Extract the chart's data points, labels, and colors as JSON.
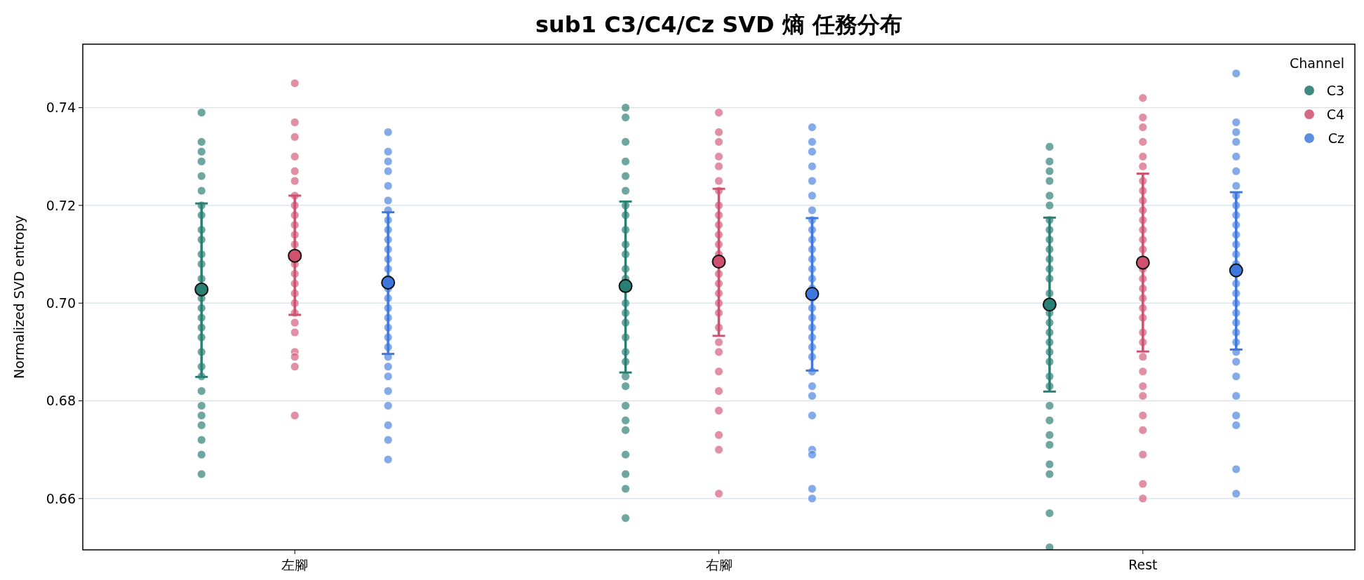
{
  "chart_data": {
    "type": "scatter",
    "title": "sub1 C3/C4/Cz SVD 熵 任務分布",
    "ylabel": "Normalized SVD entropy",
    "legend_title": "Channel",
    "legend": "top right",
    "grid": "y",
    "marker": "circle",
    "categories": [
      "左腳",
      "右腳",
      "Rest"
    ],
    "ylim": [
      0.6495,
      0.753
    ],
    "yticks": [
      {
        "value": 0.66,
        "label": "0.66"
      },
      {
        "value": 0.68,
        "label": "0.68"
      },
      {
        "value": 0.7,
        "label": "0.70"
      },
      {
        "value": 0.72,
        "label": "0.72"
      },
      {
        "value": 0.74,
        "label": "0.74"
      }
    ],
    "series": [
      {
        "name": "C3",
        "color": "#3f8a80",
        "x": [
          "左腳",
          "左腳",
          "左腳",
          "左腳",
          "左腳",
          "左腳",
          "左腳",
          "左腳",
          "左腳",
          "左腳",
          "左腳",
          "左腳",
          "左腳",
          "左腳",
          "左腳",
          "左腳",
          "左腳",
          "左腳",
          "左腳",
          "左腳",
          "左腳",
          "左腳",
          "左腳",
          "左腳",
          "左腳",
          "左腳",
          "左腳",
          "左腳",
          "右腳",
          "右腳",
          "右腳",
          "右腳",
          "右腳",
          "右腳",
          "右腳",
          "右腳",
          "右腳",
          "右腳",
          "右腳",
          "右腳",
          "右腳",
          "右腳",
          "右腳",
          "右腳",
          "右腳",
          "右腳",
          "右腳",
          "右腳",
          "右腳",
          "右腳",
          "右腳",
          "右腳",
          "右腳",
          "右腳",
          "右腳",
          "右腳",
          "Rest",
          "Rest",
          "Rest",
          "Rest",
          "Rest",
          "Rest",
          "Rest",
          "Rest",
          "Rest",
          "Rest",
          "Rest",
          "Rest",
          "Rest",
          "Rest",
          "Rest",
          "Rest",
          "Rest",
          "Rest",
          "Rest",
          "Rest",
          "Rest",
          "Rest",
          "Rest",
          "Rest",
          "Rest",
          "Rest",
          "Rest",
          "Rest",
          "Rest",
          "Rest"
        ],
        "values": [
          0.739,
          0.733,
          0.731,
          0.729,
          0.726,
          0.723,
          0.72,
          0.718,
          0.715,
          0.713,
          0.71,
          0.708,
          0.705,
          0.701,
          0.699,
          0.697,
          0.695,
          0.693,
          0.69,
          0.687,
          0.685,
          0.682,
          0.679,
          0.677,
          0.675,
          0.672,
          0.669,
          0.665,
          0.74,
          0.738,
          0.733,
          0.729,
          0.726,
          0.723,
          0.72,
          0.718,
          0.715,
          0.712,
          0.71,
          0.707,
          0.705,
          0.7,
          0.698,
          0.696,
          0.693,
          0.69,
          0.688,
          0.685,
          0.683,
          0.679,
          0.676,
          0.674,
          0.669,
          0.665,
          0.662,
          0.656,
          0.732,
          0.729,
          0.727,
          0.725,
          0.722,
          0.72,
          0.717,
          0.715,
          0.713,
          0.711,
          0.709,
          0.707,
          0.705,
          0.702,
          0.698,
          0.696,
          0.694,
          0.692,
          0.69,
          0.688,
          0.685,
          0.683,
          0.679,
          0.676,
          0.673,
          0.671,
          0.667,
          0.665,
          0.657,
          0.65
        ]
      },
      {
        "name": "C4",
        "color": "#d66a85",
        "x": [
          "左腳",
          "左腳",
          "左腳",
          "左腳",
          "左腳",
          "左腳",
          "左腳",
          "左腳",
          "左腳",
          "左腳",
          "左腳",
          "左腳",
          "左腳",
          "左腳",
          "左腳",
          "左腳",
          "左腳",
          "左腳",
          "左腳",
          "左腳",
          "左腳",
          "左腳",
          "左腳",
          "左腳",
          "右腳",
          "右腳",
          "右腳",
          "右腳",
          "右腳",
          "右腳",
          "右腳",
          "右腳",
          "右腳",
          "右腳",
          "右腳",
          "右腳",
          "右腳",
          "右腳",
          "右腳",
          "右腳",
          "右腳",
          "右腳",
          "右腳",
          "右腳",
          "右腳",
          "右腳",
          "右腳",
          "右腳",
          "右腳",
          "右腳",
          "右腳",
          "Rest",
          "Rest",
          "Rest",
          "Rest",
          "Rest",
          "Rest",
          "Rest",
          "Rest",
          "Rest",
          "Rest",
          "Rest",
          "Rest",
          "Rest",
          "Rest",
          "Rest",
          "Rest",
          "Rest",
          "Rest",
          "Rest",
          "Rest",
          "Rest",
          "Rest",
          "Rest",
          "Rest",
          "Rest",
          "Rest",
          "Rest",
          "Rest",
          "Rest",
          "Rest",
          "Rest"
        ],
        "values": [
          0.745,
          0.737,
          0.734,
          0.73,
          0.727,
          0.725,
          0.722,
          0.72,
          0.718,
          0.716,
          0.714,
          0.712,
          0.708,
          0.706,
          0.704,
          0.702,
          0.7,
          0.698,
          0.696,
          0.694,
          0.69,
          0.689,
          0.687,
          0.677,
          0.739,
          0.735,
          0.733,
          0.73,
          0.728,
          0.725,
          0.723,
          0.72,
          0.718,
          0.716,
          0.714,
          0.712,
          0.71,
          0.706,
          0.704,
          0.702,
          0.7,
          0.698,
          0.695,
          0.692,
          0.69,
          0.686,
          0.682,
          0.678,
          0.673,
          0.67,
          0.661,
          0.742,
          0.738,
          0.736,
          0.733,
          0.73,
          0.728,
          0.725,
          0.723,
          0.721,
          0.719,
          0.717,
          0.715,
          0.713,
          0.711,
          0.707,
          0.705,
          0.703,
          0.701,
          0.699,
          0.697,
          0.694,
          0.692,
          0.689,
          0.686,
          0.683,
          0.681,
          0.677,
          0.674,
          0.669,
          0.663,
          0.66
        ]
      },
      {
        "name": "Cz",
        "color": "#5b8ee0",
        "x": [
          "左腳",
          "左腳",
          "左腳",
          "左腳",
          "左腳",
          "左腳",
          "左腳",
          "左腳",
          "左腳",
          "左腳",
          "左腳",
          "左腳",
          "左腳",
          "左腳",
          "左腳",
          "左腳",
          "左腳",
          "左腳",
          "左腳",
          "左腳",
          "左腳",
          "左腳",
          "左腳",
          "左腳",
          "左腳",
          "左腳",
          "左腳",
          "左腳",
          "左腳",
          "右腳",
          "右腳",
          "右腳",
          "右腳",
          "右腳",
          "右腳",
          "右腳",
          "右腳",
          "右腳",
          "右腳",
          "右腳",
          "右腳",
          "右腳",
          "右腳",
          "右腳",
          "右腳",
          "右腳",
          "右腳",
          "右腳",
          "右腳",
          "右腳",
          "右腳",
          "右腳",
          "右腳",
          "右腳",
          "右腳",
          "右腳",
          "右腳",
          "右腳",
          "右腳",
          "Rest",
          "Rest",
          "Rest",
          "Rest",
          "Rest",
          "Rest",
          "Rest",
          "Rest",
          "Rest",
          "Rest",
          "Rest",
          "Rest",
          "Rest",
          "Rest",
          "Rest",
          "Rest",
          "Rest",
          "Rest",
          "Rest",
          "Rest",
          "Rest",
          "Rest",
          "Rest",
          "Rest",
          "Rest",
          "Rest",
          "Rest",
          "Rest",
          "Rest",
          "Rest"
        ],
        "values": [
          0.735,
          0.731,
          0.729,
          0.727,
          0.724,
          0.721,
          0.719,
          0.717,
          0.715,
          0.713,
          0.711,
          0.709,
          0.707,
          0.705,
          0.703,
          0.701,
          0.699,
          0.697,
          0.695,
          0.693,
          0.691,
          0.689,
          0.687,
          0.685,
          0.682,
          0.679,
          0.675,
          0.672,
          0.668,
          0.736,
          0.733,
          0.731,
          0.728,
          0.725,
          0.722,
          0.719,
          0.717,
          0.715,
          0.713,
          0.711,
          0.709,
          0.707,
          0.705,
          0.703,
          0.701,
          0.699,
          0.697,
          0.695,
          0.693,
          0.691,
          0.689,
          0.686,
          0.683,
          0.681,
          0.677,
          0.67,
          0.669,
          0.662,
          0.66,
          0.747,
          0.737,
          0.735,
          0.733,
          0.73,
          0.727,
          0.724,
          0.722,
          0.72,
          0.718,
          0.716,
          0.714,
          0.712,
          0.71,
          0.708,
          0.704,
          0.702,
          0.7,
          0.698,
          0.696,
          0.694,
          0.692,
          0.69,
          0.688,
          0.685,
          0.681,
          0.677,
          0.675,
          0.666,
          0.661
        ]
      },
      {
        "color": "#2a7f74",
        "x": [
          "左腳",
          "右腳",
          "Rest"
        ],
        "values": [
          0.7028,
          0.7035,
          0.6997
        ],
        "errors": [
          [
            0.6849,
            0.7204
          ],
          [
            0.6858,
            0.7208
          ],
          [
            0.6819,
            0.7175
          ]
        ]
      },
      {
        "color": "#d0506f",
        "x": [
          "左腳",
          "右腳",
          "Rest"
        ],
        "values": [
          0.7097,
          0.7085,
          0.7083
        ],
        "errors": [
          [
            0.6976,
            0.722
          ],
          [
            0.6933,
            0.7234
          ],
          [
            0.6901,
            0.7265
          ]
        ]
      },
      {
        "color": "#3f78dc",
        "x": [
          "左腳",
          "右腳",
          "Rest"
        ],
        "values": [
          0.7042,
          0.7019,
          0.7067
        ],
        "errors": [
          [
            0.6896,
            0.7186
          ],
          [
            0.6862,
            0.7174
          ],
          [
            0.6905,
            0.7227
          ]
        ]
      }
    ]
  }
}
